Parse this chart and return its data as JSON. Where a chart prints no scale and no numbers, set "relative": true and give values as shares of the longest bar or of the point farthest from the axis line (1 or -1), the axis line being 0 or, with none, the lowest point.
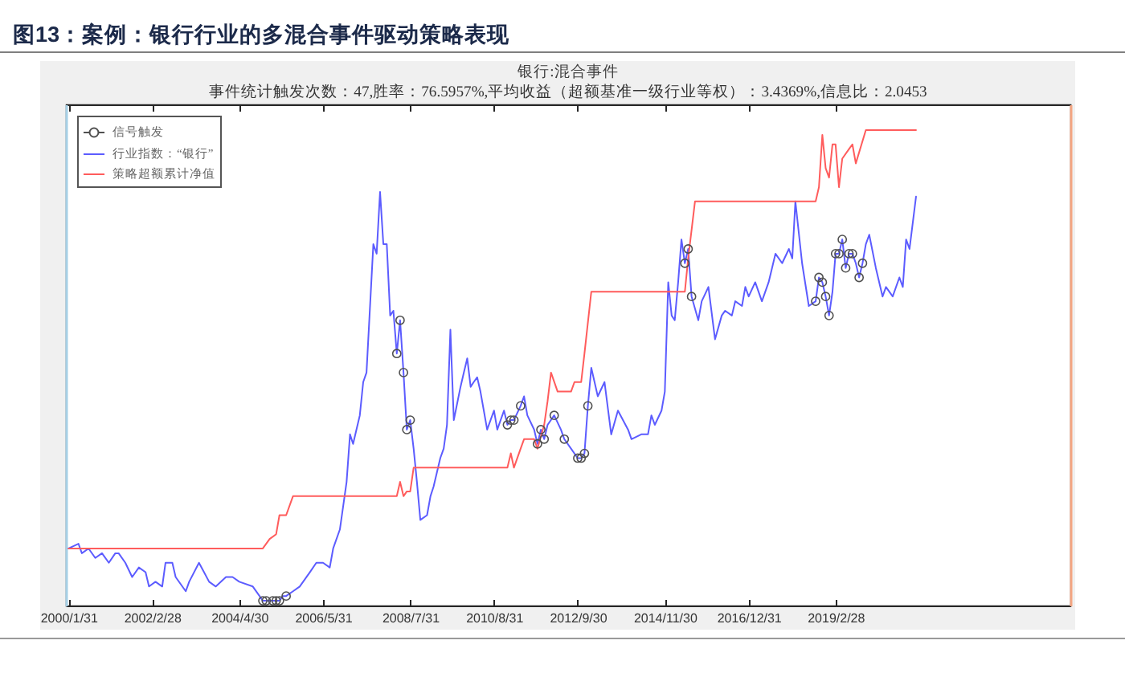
{
  "chart_data": {
    "type": "line",
    "title": "图13：案例：银行行业的多混合事件驱动策略表现",
    "subtitle": "银行:混合事件",
    "annotations": [
      "事件统计触发次数：47,胜率：76.5957%,平均收益（超额基准一级行业等权）：3.4369%,信息比：2.0453"
    ],
    "relative": true,
    "legend": "top left",
    "xlim": [
      "2000-01-07",
      "2024-12-31"
    ],
    "xticks": [
      {
        "value": "2000-01-31",
        "label": "2000/1/31"
      },
      {
        "value": "2002-02-28",
        "label": "2002/2/28"
      },
      {
        "value": "2004-04-30",
        "label": "2004/4/30"
      },
      {
        "value": "2006-05-31",
        "label": "2006/5/31"
      },
      {
        "value": "2008-07-31",
        "label": "2008/7/31"
      },
      {
        "value": "2010-08-31",
        "label": "2010/8/31"
      },
      {
        "value": "2012-09-30",
        "label": "2012/9/30"
      },
      {
        "value": "2014-11-30",
        "label": "2014/11/30"
      },
      {
        "value": "2016-12-31",
        "label": "2016/12/31"
      },
      {
        "value": "2019-02-28",
        "label": "2019/2/28"
      }
    ],
    "series": [
      {
        "name": "信号触发",
        "type": "scatter",
        "marker": "circle",
        "color": "#505050",
        "x": [
          "2004-11-30",
          "2004-12-31",
          "2005-02-28",
          "2005-03-31",
          "2005-04-30",
          "2005-06-30",
          "2008-03-31",
          "2008-04-30",
          "2008-05-31",
          "2008-06-30",
          "2008-07-31",
          "2010-12-31",
          "2011-01-31",
          "2011-02-28",
          "2011-04-30",
          "2011-09-30",
          "2011-10-31",
          "2011-11-30",
          "2012-02-29",
          "2012-05-31",
          "2012-09-30",
          "2012-10-31",
          "2012-11-30",
          "2012-12-31",
          "2015-05-31",
          "2015-06-30",
          "2015-07-31",
          "2018-08-31",
          "2018-09-30",
          "2018-10-31",
          "2018-11-30",
          "2018-12-31",
          "2019-02-28",
          "2019-03-31",
          "2019-04-30",
          "2019-05-31",
          "2019-06-30",
          "2019-07-31",
          "2019-09-30",
          "2019-10-31"
        ],
        "values": [
          0.01,
          0.01,
          0.01,
          0.01,
          0.01,
          0.02,
          0.53,
          0.6,
          0.49,
          0.37,
          0.39,
          0.38,
          0.39,
          0.39,
          0.42,
          0.34,
          0.37,
          0.35,
          0.4,
          0.35,
          0.31,
          0.31,
          0.32,
          0.42,
          0.72,
          0.75,
          0.65,
          0.64,
          0.69,
          0.68,
          0.65,
          0.61,
          0.74,
          0.74,
          0.77,
          0.71,
          0.74,
          0.74,
          0.69,
          0.72
        ]
      },
      {
        "name": "行业指数：“银行”",
        "color": "#5c5cff",
        "x": [
          "2000-01-31",
          "2000-04-30",
          "2000-05-31",
          "2000-07-31",
          "2000-09-30",
          "2000-11-30",
          "2001-01-31",
          "2001-03-31",
          "2001-04-30",
          "2001-06-30",
          "2001-08-31",
          "2001-10-31",
          "2001-12-31",
          "2002-01-31",
          "2002-03-31",
          "2002-05-31",
          "2002-06-30",
          "2002-08-31",
          "2002-09-30",
          "2002-12-31",
          "2003-01-31",
          "2003-04-30",
          "2003-07-31",
          "2003-09-30",
          "2003-12-31",
          "2004-02-29",
          "2004-04-30",
          "2004-08-31",
          "2004-10-31",
          "2004-11-30",
          "2004-12-31",
          "2005-01-31",
          "2005-02-28",
          "2005-03-31",
          "2005-04-30",
          "2005-05-31",
          "2005-06-30",
          "2005-08-31",
          "2005-10-31",
          "2006-01-31",
          "2006-03-31",
          "2006-05-31",
          "2006-07-31",
          "2006-08-31",
          "2006-10-31",
          "2006-12-31",
          "2007-01-31",
          "2007-02-28",
          "2007-04-30",
          "2007-05-31",
          "2007-06-30",
          "2007-08-31",
          "2007-09-30",
          "2007-10-31",
          "2007-11-30",
          "2007-12-31",
          "2008-01-31",
          "2008-02-29",
          "2008-03-31",
          "2008-04-30",
          "2008-05-31",
          "2008-06-30",
          "2008-07-31",
          "2008-08-31",
          "2008-09-30",
          "2008-10-31",
          "2008-12-31",
          "2009-01-31",
          "2009-02-28",
          "2009-04-30",
          "2009-05-31",
          "2009-06-30",
          "2009-07-31",
          "2009-08-31",
          "2009-10-31",
          "2009-11-30",
          "2009-12-31",
          "2010-01-31",
          "2010-02-28",
          "2010-03-31",
          "2010-04-30",
          "2010-06-30",
          "2010-08-31",
          "2010-09-30",
          "2010-11-30",
          "2010-12-31",
          "2011-01-31",
          "2011-02-28",
          "2011-04-30",
          "2011-05-31",
          "2011-06-30",
          "2011-08-31",
          "2011-09-30",
          "2011-10-31",
          "2011-11-30",
          "2011-12-31",
          "2012-02-29",
          "2012-04-30",
          "2012-05-31",
          "2012-07-31",
          "2012-09-30",
          "2012-10-31",
          "2012-11-30",
          "2012-12-31",
          "2013-01-31",
          "2013-03-31",
          "2013-05-31",
          "2013-07-31",
          "2013-09-30",
          "2013-12-31",
          "2014-01-31",
          "2014-04-30",
          "2014-06-30",
          "2014-07-31",
          "2014-08-31",
          "2014-10-31",
          "2014-11-30",
          "2014-12-31",
          "2015-01-31",
          "2015-02-28",
          "2015-03-31",
          "2015-04-30",
          "2015-05-31",
          "2015-06-30",
          "2015-07-31",
          "2015-09-30",
          "2015-10-31",
          "2015-12-31",
          "2016-02-29",
          "2016-04-30",
          "2016-05-31",
          "2016-07-31",
          "2016-08-31",
          "2016-10-31",
          "2016-11-30",
          "2016-12-31",
          "2017-02-28",
          "2017-04-30",
          "2017-06-30",
          "2017-08-31",
          "2017-10-31",
          "2017-12-31",
          "2018-01-31",
          "2018-02-28",
          "2018-04-30",
          "2018-06-30",
          "2018-08-31",
          "2018-09-30",
          "2018-10-31",
          "2018-11-30",
          "2018-12-31",
          "2019-01-31",
          "2019-02-28",
          "2019-03-31",
          "2019-04-30",
          "2019-05-31",
          "2019-06-30",
          "2019-07-31",
          "2019-08-31",
          "2019-09-30",
          "2019-10-31",
          "2019-11-30",
          "2019-12-31",
          "2020-02-29",
          "2020-04-30",
          "2020-05-31",
          "2020-07-31",
          "2020-09-30",
          "2020-10-31",
          "2020-11-30",
          "2020-12-31",
          "2021-02-28"
        ],
        "values": [
          0.12,
          0.13,
          0.11,
          0.12,
          0.1,
          0.11,
          0.09,
          0.11,
          0.11,
          0.09,
          0.06,
          0.08,
          0.07,
          0.04,
          0.05,
          0.04,
          0.09,
          0.09,
          0.06,
          0.03,
          0.05,
          0.09,
          0.05,
          0.04,
          0.06,
          0.06,
          0.05,
          0.04,
          0.02,
          0.01,
          0.01,
          0.01,
          0.01,
          0.01,
          0.01,
          0.02,
          0.02,
          0.03,
          0.04,
          0.07,
          0.09,
          0.09,
          0.08,
          0.12,
          0.16,
          0.26,
          0.36,
          0.34,
          0.4,
          0.47,
          0.49,
          0.76,
          0.74,
          0.87,
          0.76,
          0.76,
          0.61,
          0.62,
          0.53,
          0.6,
          0.49,
          0.37,
          0.39,
          0.33,
          0.26,
          0.18,
          0.19,
          0.23,
          0.25,
          0.31,
          0.33,
          0.38,
          0.58,
          0.39,
          0.46,
          0.49,
          0.52,
          0.46,
          0.47,
          0.48,
          0.45,
          0.37,
          0.41,
          0.37,
          0.41,
          0.38,
          0.39,
          0.39,
          0.42,
          0.44,
          0.4,
          0.37,
          0.34,
          0.37,
          0.35,
          0.38,
          0.4,
          0.37,
          0.35,
          0.33,
          0.31,
          0.31,
          0.32,
          0.42,
          0.5,
          0.44,
          0.47,
          0.36,
          0.41,
          0.37,
          0.35,
          0.36,
          0.36,
          0.4,
          0.38,
          0.41,
          0.45,
          0.68,
          0.61,
          0.6,
          0.68,
          0.77,
          0.72,
          0.75,
          0.65,
          0.6,
          0.64,
          0.67,
          0.56,
          0.61,
          0.62,
          0.61,
          0.64,
          0.63,
          0.67,
          0.65,
          0.68,
          0.64,
          0.68,
          0.74,
          0.72,
          0.75,
          0.73,
          0.85,
          0.72,
          0.63,
          0.64,
          0.69,
          0.68,
          0.65,
          0.61,
          0.66,
          0.74,
          0.74,
          0.77,
          0.71,
          0.74,
          0.74,
          0.72,
          0.69,
          0.72,
          0.76,
          0.78,
          0.71,
          0.65,
          0.67,
          0.65,
          0.69,
          0.67,
          0.77,
          0.75,
          0.86
        ]
      },
      {
        "name": "策略超额累计净值",
        "color": "#ff5c5c",
        "x": [
          "2000-01-31",
          "2004-11-30",
          "2005-01-31",
          "2005-03-31",
          "2005-04-30",
          "2005-06-30",
          "2005-08-31",
          "2008-03-31",
          "2008-04-30",
          "2008-05-31",
          "2008-06-30",
          "2008-07-31",
          "2008-08-31",
          "2010-12-31",
          "2011-01-31",
          "2011-02-28",
          "2011-04-30",
          "2011-05-31",
          "2011-08-31",
          "2011-09-30",
          "2011-11-30",
          "2011-12-31",
          "2012-01-31",
          "2012-03-31",
          "2012-07-31",
          "2012-08-31",
          "2012-10-31",
          "2012-11-30",
          "2013-01-31",
          "2015-05-31",
          "2015-06-30",
          "2015-07-31",
          "2015-08-31",
          "2018-08-31",
          "2018-09-30",
          "2018-10-31",
          "2018-11-30",
          "2018-12-31",
          "2019-01-31",
          "2019-02-28",
          "2019-03-31",
          "2019-04-30",
          "2019-06-30",
          "2019-07-31",
          "2019-08-31",
          "2019-11-30",
          "2021-02-28"
        ],
        "values": [
          0.12,
          0.12,
          0.14,
          0.15,
          0.19,
          0.19,
          0.23,
          0.23,
          0.26,
          0.23,
          0.24,
          0.24,
          0.29,
          0.29,
          0.32,
          0.29,
          0.33,
          0.35,
          0.35,
          0.33,
          0.38,
          0.43,
          0.49,
          0.45,
          0.45,
          0.47,
          0.47,
          0.53,
          0.66,
          0.66,
          0.73,
          0.79,
          0.85,
          0.85,
          0.88,
          0.99,
          0.92,
          0.9,
          0.97,
          0.97,
          0.88,
          0.94,
          0.96,
          0.97,
          0.93,
          1,
          1
        ]
      }
    ]
  }
}
